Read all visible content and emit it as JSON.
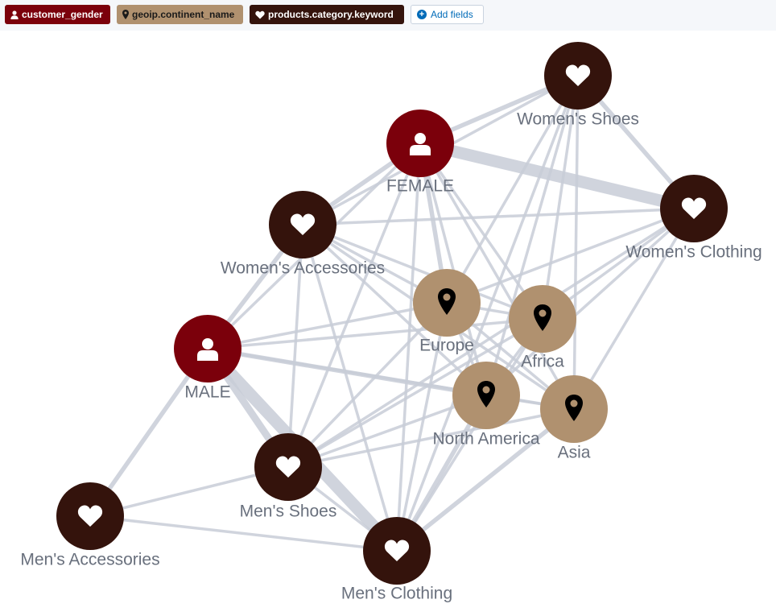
{
  "toolbar": {
    "fields": [
      {
        "label": "customer_gender",
        "icon": "user-icon",
        "color": "#7b000b"
      },
      {
        "label": "geoip.continent_name",
        "icon": "map-marker-icon",
        "color": "#b0916f"
      },
      {
        "label": "products.category.keyword",
        "icon": "heart-icon",
        "color": "#34130c"
      }
    ],
    "add_label": "Add fields"
  },
  "colors": {
    "gender": "#7b000b",
    "continent": "#b0916f",
    "category": "#34130c",
    "edge": "#c8cdd7"
  },
  "graph": {
    "nodes": [
      {
        "id": "womens-shoes",
        "label": "Women's Shoes",
        "field": "category",
        "icon": "heart-icon"
      },
      {
        "id": "female",
        "label": "FEMALE",
        "field": "gender",
        "icon": "user-icon"
      },
      {
        "id": "womens-clothing",
        "label": "Women's Clothing",
        "field": "category",
        "icon": "heart-icon"
      },
      {
        "id": "womens-accessories",
        "label": "Women's Accessories",
        "field": "category",
        "icon": "heart-icon"
      },
      {
        "id": "europe",
        "label": "Europe",
        "field": "continent",
        "icon": "map-marker-icon"
      },
      {
        "id": "africa",
        "label": "Africa",
        "field": "continent",
        "icon": "map-marker-icon"
      },
      {
        "id": "male",
        "label": "MALE",
        "field": "gender",
        "icon": "user-icon"
      },
      {
        "id": "north-america",
        "label": "North America",
        "field": "continent",
        "icon": "map-marker-icon"
      },
      {
        "id": "asia",
        "label": "Asia",
        "field": "continent",
        "icon": "map-marker-icon"
      },
      {
        "id": "mens-shoes",
        "label": "Men's Shoes",
        "field": "category",
        "icon": "heart-icon"
      },
      {
        "id": "mens-accessories",
        "label": "Men's Accessories",
        "field": "category",
        "icon": "heart-icon"
      },
      {
        "id": "mens-clothing",
        "label": "Men's Clothing",
        "field": "category",
        "icon": "heart-icon"
      }
    ],
    "edges": [
      {
        "source": "female",
        "target": "womens-clothing",
        "weight": 5
      },
      {
        "source": "female",
        "target": "womens-shoes",
        "weight": 2
      },
      {
        "source": "female",
        "target": "womens-accessories",
        "weight": 2
      },
      {
        "source": "female",
        "target": "europe",
        "weight": 2
      },
      {
        "source": "female",
        "target": "africa",
        "weight": 1
      },
      {
        "source": "female",
        "target": "north-america",
        "weight": 1
      },
      {
        "source": "female",
        "target": "asia",
        "weight": 1
      },
      {
        "source": "female",
        "target": "male",
        "weight": 1
      },
      {
        "source": "female",
        "target": "mens-shoes",
        "weight": 1
      },
      {
        "source": "female",
        "target": "mens-clothing",
        "weight": 1
      },
      {
        "source": "womens-shoes",
        "target": "womens-clothing",
        "weight": 2
      },
      {
        "source": "womens-shoes",
        "target": "womens-accessories",
        "weight": 1
      },
      {
        "source": "womens-shoes",
        "target": "europe",
        "weight": 1
      },
      {
        "source": "womens-shoes",
        "target": "africa",
        "weight": 1
      },
      {
        "source": "womens-shoes",
        "target": "north-america",
        "weight": 1
      },
      {
        "source": "womens-shoes",
        "target": "asia",
        "weight": 1
      },
      {
        "source": "womens-shoes",
        "target": "mens-clothing",
        "weight": 1
      },
      {
        "source": "womens-clothing",
        "target": "womens-accessories",
        "weight": 1
      },
      {
        "source": "womens-clothing",
        "target": "europe",
        "weight": 1
      },
      {
        "source": "womens-clothing",
        "target": "africa",
        "weight": 1
      },
      {
        "source": "womens-clothing",
        "target": "north-america",
        "weight": 1
      },
      {
        "source": "womens-clothing",
        "target": "asia",
        "weight": 1
      },
      {
        "source": "womens-clothing",
        "target": "mens-shoes",
        "weight": 1
      },
      {
        "source": "womens-accessories",
        "target": "male",
        "weight": 2
      },
      {
        "source": "womens-accessories",
        "target": "europe",
        "weight": 1
      },
      {
        "source": "womens-accessories",
        "target": "africa",
        "weight": 1
      },
      {
        "source": "womens-accessories",
        "target": "north-america",
        "weight": 1
      },
      {
        "source": "womens-accessories",
        "target": "asia",
        "weight": 1
      },
      {
        "source": "womens-accessories",
        "target": "mens-shoes",
        "weight": 1
      },
      {
        "source": "womens-accessories",
        "target": "mens-clothing",
        "weight": 1
      },
      {
        "source": "male",
        "target": "mens-clothing",
        "weight": 5
      },
      {
        "source": "male",
        "target": "mens-shoes",
        "weight": 3
      },
      {
        "source": "male",
        "target": "mens-accessories",
        "weight": 2
      },
      {
        "source": "male",
        "target": "north-america",
        "weight": 2
      },
      {
        "source": "male",
        "target": "europe",
        "weight": 1
      },
      {
        "source": "male",
        "target": "africa",
        "weight": 1
      },
      {
        "source": "male",
        "target": "asia",
        "weight": 1
      },
      {
        "source": "mens-shoes",
        "target": "mens-clothing",
        "weight": 1
      },
      {
        "source": "mens-shoes",
        "target": "mens-accessories",
        "weight": 1
      },
      {
        "source": "mens-shoes",
        "target": "europe",
        "weight": 1
      },
      {
        "source": "mens-shoes",
        "target": "africa",
        "weight": 1
      },
      {
        "source": "mens-shoes",
        "target": "north-america",
        "weight": 1
      },
      {
        "source": "mens-shoes",
        "target": "asia",
        "weight": 1
      },
      {
        "source": "mens-accessories",
        "target": "mens-clothing",
        "weight": 1
      },
      {
        "source": "mens-clothing",
        "target": "europe",
        "weight": 1
      },
      {
        "source": "mens-clothing",
        "target": "africa",
        "weight": 1
      },
      {
        "source": "mens-clothing",
        "target": "north-america",
        "weight": 2
      },
      {
        "source": "mens-clothing",
        "target": "asia",
        "weight": 2
      },
      {
        "source": "europe",
        "target": "africa",
        "weight": 1
      },
      {
        "source": "europe",
        "target": "north-america",
        "weight": 1
      },
      {
        "source": "europe",
        "target": "asia",
        "weight": 1
      },
      {
        "source": "north-america",
        "target": "asia",
        "weight": 1
      },
      {
        "source": "africa",
        "target": "north-america",
        "weight": 1
      }
    ]
  }
}
